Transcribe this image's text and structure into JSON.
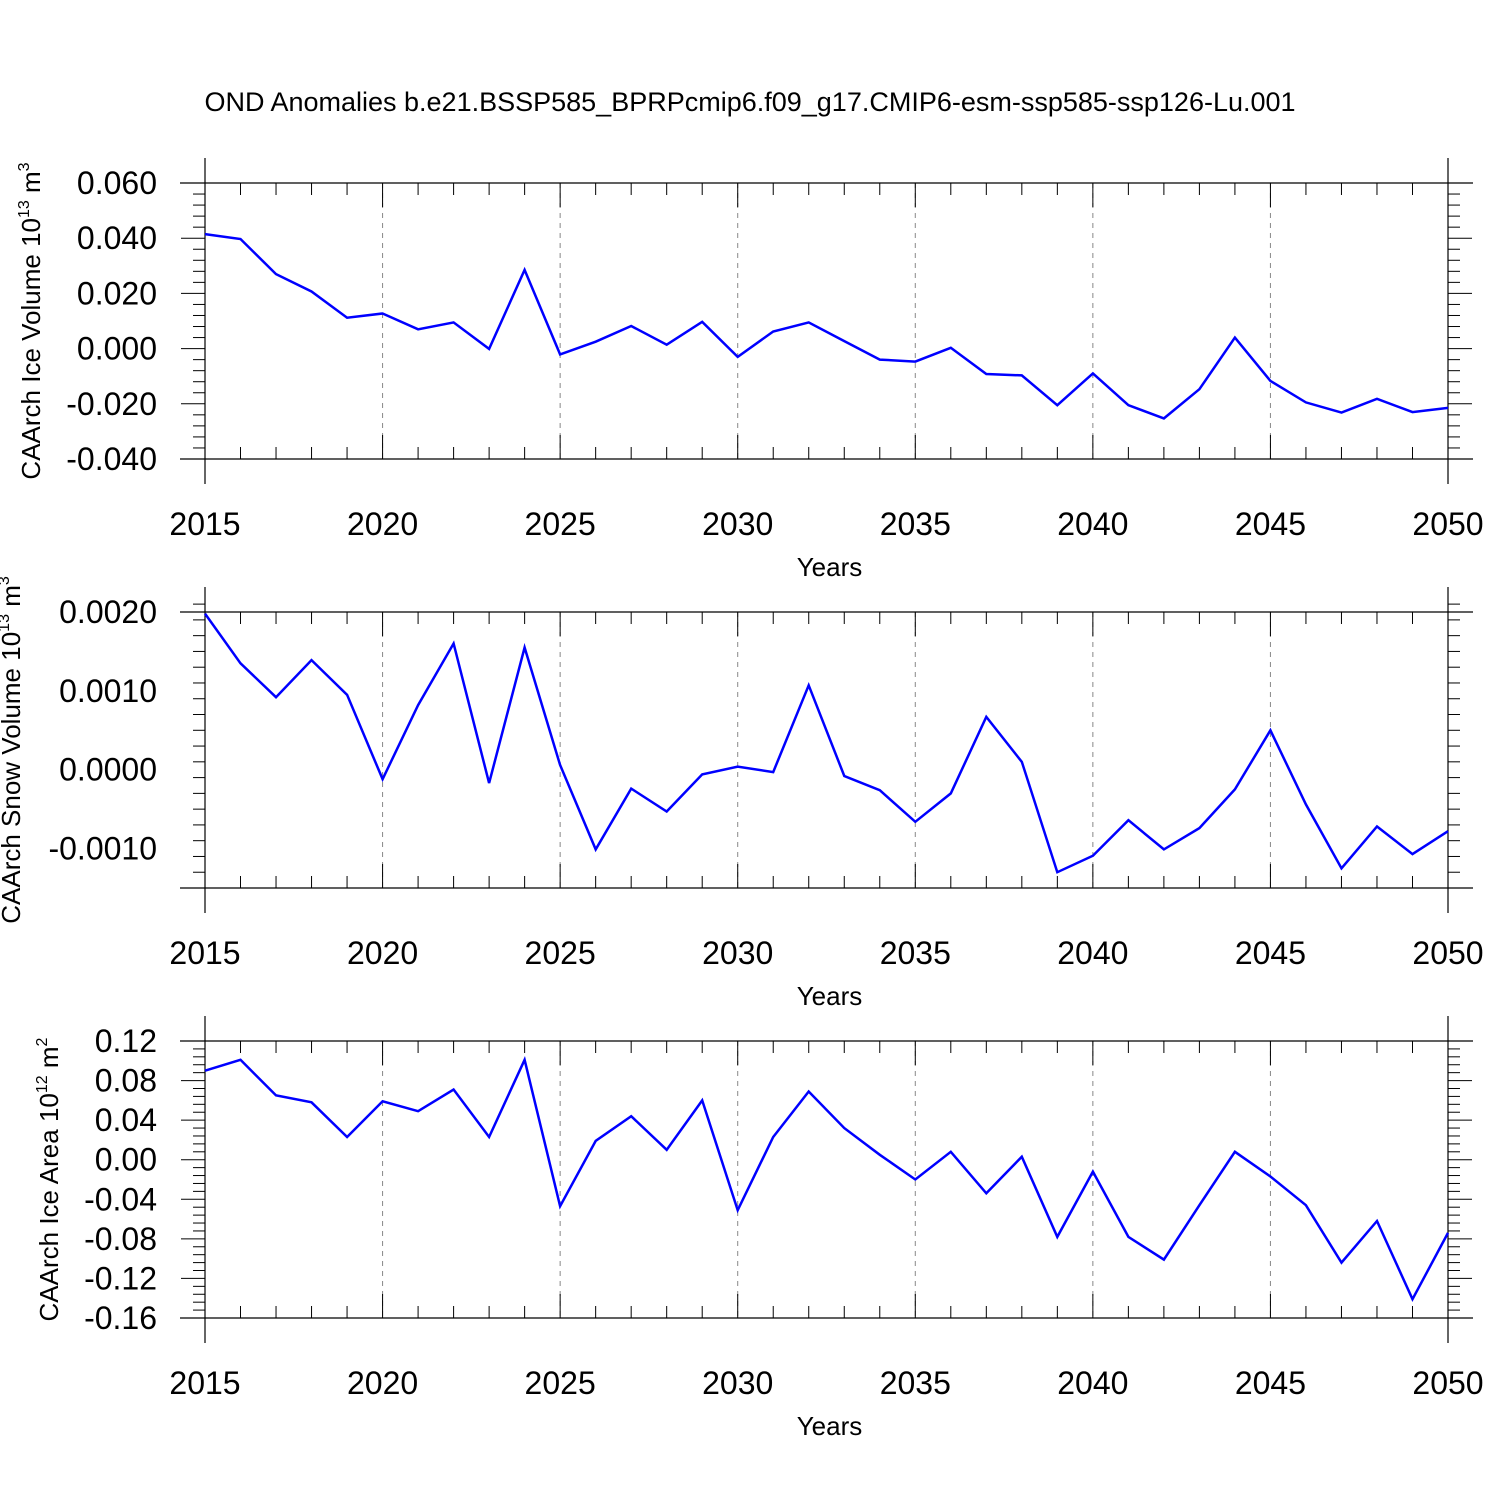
{
  "title": "OND Anomalies b.e21.BSSP585_BPRPcmip6.f09_g17.CMIP6-esm-ssp585-ssp126-Lu.001",
  "line_color": "#0000ff",
  "grid_color": "#888888",
  "chart_data": [
    {
      "type": "line",
      "ylabel": {
        "text": "CAArch Ice Volume 10",
        "exp": "13",
        "unit": " m",
        "unit_exp": "3"
      },
      "xlabel": "Years",
      "xlim": [
        2015,
        2050
      ],
      "ylim": [
        -0.04,
        0.06
      ],
      "yticks": [
        -0.04,
        -0.02,
        0.0,
        0.02,
        0.04,
        0.06
      ],
      "ytick_labels": [
        "-0.040",
        "-0.020",
        "0.000",
        "0.020",
        "0.040",
        "0.060"
      ],
      "xticks": [
        2015,
        2020,
        2025,
        2030,
        2035,
        2040,
        2045,
        2050
      ],
      "xtick_labels": [
        "2015",
        "2020",
        "2025",
        "2030",
        "2035",
        "2040",
        "2045",
        "2050"
      ],
      "grid": "vertical dashed at major x ticks",
      "x": [
        2015,
        2016,
        2017,
        2018,
        2019,
        2020,
        2021,
        2022,
        2023,
        2024,
        2025,
        2026,
        2027,
        2028,
        2029,
        2030,
        2031,
        2032,
        2033,
        2034,
        2035,
        2036,
        2037,
        2038,
        2039,
        2040,
        2041,
        2042,
        2043,
        2044,
        2045,
        2046,
        2047,
        2048,
        2049,
        2050
      ],
      "series": [
        {
          "values": [
            0.0415,
            0.0397,
            0.027,
            0.0207,
            0.0112,
            0.0127,
            0.007,
            0.0095,
            -0.0001,
            0.0285,
            -0.0021,
            0.0025,
            0.0082,
            0.0014,
            0.0097,
            -0.003,
            0.0062,
            0.0095,
            0.0027,
            -0.004,
            -0.0047,
            0.0003,
            -0.0092,
            -0.0097,
            -0.0205,
            -0.009,
            -0.0205,
            -0.0253,
            -0.0147,
            0.004,
            -0.0117,
            -0.0195,
            -0.0232,
            -0.0182,
            -0.023,
            -0.0215
          ]
        }
      ]
    },
    {
      "type": "line",
      "ylabel": {
        "text": "CAArch Snow Volume 10",
        "exp": "13",
        "unit": " m",
        "unit_exp": "3"
      },
      "xlabel": "Years",
      "xlim": [
        2015,
        2050
      ],
      "ylim": [
        -0.0015,
        0.002
      ],
      "yticks": [
        -0.001,
        0.0,
        0.001,
        0.002
      ],
      "ytick_labels": [
        "-0.0010",
        "0.0000",
        "0.0010",
        "0.0020"
      ],
      "xticks": [
        2015,
        2020,
        2025,
        2030,
        2035,
        2040,
        2045,
        2050
      ],
      "xtick_labels": [
        "2015",
        "2020",
        "2025",
        "2030",
        "2035",
        "2040",
        "2045",
        "2050"
      ],
      "grid": "vertical dashed at major x ticks",
      "x": [
        2015,
        2016,
        2017,
        2018,
        2019,
        2020,
        2021,
        2022,
        2023,
        2024,
        2025,
        2026,
        2027,
        2028,
        2029,
        2030,
        2031,
        2032,
        2033,
        2034,
        2035,
        2036,
        2037,
        2038,
        2039,
        2040,
        2041,
        2042,
        2043,
        2044,
        2045,
        2046,
        2047,
        2048,
        2049,
        2050
      ],
      "series": [
        {
          "values": [
            0.00198,
            0.00135,
            0.00092,
            0.00139,
            0.00095,
            -0.00012,
            0.00082,
            0.0016,
            -0.00017,
            0.00155,
            6e-05,
            -0.00101,
            -0.00024,
            -0.00053,
            -6e-05,
            4e-05,
            -3e-05,
            0.00107,
            -8e-05,
            -0.00026,
            -0.00066,
            -0.0003,
            0.00067,
            0.0001,
            -0.0013,
            -0.00109,
            -0.00064,
            -0.00101,
            -0.00074,
            -0.00025,
            0.0005,
            -0.00044,
            -0.00125,
            -0.00072,
            -0.00107,
            -0.00078
          ]
        }
      ]
    },
    {
      "type": "line",
      "ylabel": {
        "text": "CAArch Ice Area 10",
        "exp": "12",
        "unit": " m",
        "unit_exp": "2"
      },
      "xlabel": "Years",
      "xlim": [
        2015,
        2050
      ],
      "ylim": [
        -0.16,
        0.12
      ],
      "yticks": [
        -0.16,
        -0.12,
        -0.08,
        -0.04,
        0.0,
        0.04,
        0.08,
        0.12
      ],
      "ytick_labels": [
        "-0.16",
        "-0.12",
        "-0.08",
        "-0.04",
        "0.00",
        "0.04",
        "0.08",
        "0.12"
      ],
      "xticks": [
        2015,
        2020,
        2025,
        2030,
        2035,
        2040,
        2045,
        2050
      ],
      "xtick_labels": [
        "2015",
        "2020",
        "2025",
        "2030",
        "2035",
        "2040",
        "2045",
        "2050"
      ],
      "grid": "vertical dashed at major x ticks",
      "x": [
        2015,
        2016,
        2017,
        2018,
        2019,
        2020,
        2021,
        2022,
        2023,
        2024,
        2025,
        2026,
        2027,
        2028,
        2029,
        2030,
        2031,
        2032,
        2033,
        2034,
        2035,
        2036,
        2037,
        2038,
        2039,
        2040,
        2041,
        2042,
        2043,
        2044,
        2045,
        2046,
        2047,
        2048,
        2049,
        2050
      ],
      "series": [
        {
          "values": [
            0.09,
            0.101,
            0.065,
            0.058,
            0.023,
            0.059,
            0.049,
            0.071,
            0.023,
            0.101,
            -0.047,
            0.019,
            0.044,
            0.01,
            0.06,
            -0.051,
            0.023,
            0.069,
            0.032,
            0.005,
            -0.02,
            0.008,
            -0.034,
            0.003,
            -0.078,
            -0.012,
            -0.078,
            -0.101,
            -0.046,
            0.008,
            -0.017,
            -0.046,
            -0.104,
            -0.062,
            -0.141,
            -0.074
          ]
        }
      ]
    }
  ]
}
